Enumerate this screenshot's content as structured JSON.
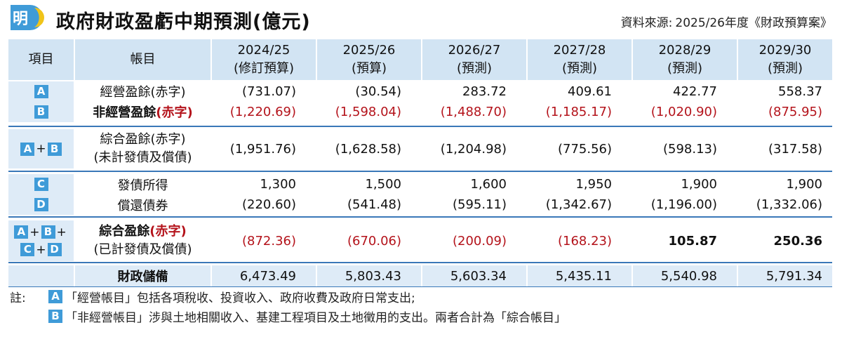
{
  "header": {
    "logo_char": "明",
    "title": "政府財政盈虧中期預測(億元)",
    "source_label": "資料來源:",
    "source_value": "2025/26年度《財政預算案》"
  },
  "columns": {
    "item": "項目",
    "account": "帳目",
    "years": [
      {
        "year": "2024/25",
        "type": "(修訂預算)"
      },
      {
        "year": "2025/26",
        "type": "(預算)"
      },
      {
        "year": "2026/27",
        "type": "(預測)"
      },
      {
        "year": "2027/28",
        "type": "(預測)"
      },
      {
        "year": "2028/29",
        "type": "(預測)"
      },
      {
        "year": "2029/30",
        "type": "(預測)"
      }
    ]
  },
  "badges": {
    "a": "A",
    "b": "B",
    "c": "C",
    "d": "D",
    "plus": "+"
  },
  "rows": {
    "operating": {
      "name_main": "經營盈餘",
      "name_paren": "(赤字)",
      "values": [
        "(731.07)",
        "(30.54)",
        "283.72",
        "409.61",
        "422.77",
        "558.37"
      ]
    },
    "non_operating": {
      "name_main": "非經營盈餘",
      "name_paren": "(赤字)",
      "values": [
        "(1,220.69)",
        "(1,598.04)",
        "(1,488.70)",
        "(1,185.17)",
        "(1,020.90)",
        "(875.95)"
      ]
    },
    "consolidated_pre": {
      "name_line1": "綜合盈餘(赤字)",
      "name_line2": "(未計發債及償債)",
      "values": [
        "(1,951.76)",
        "(1,628.58)",
        "(1,204.98)",
        "(775.56)",
        "(598.13)",
        "(317.58)"
      ]
    },
    "bond_proceeds": {
      "name": "發債所得",
      "values": [
        "1,300",
        "1,500",
        "1,600",
        "1,950",
        "1,900",
        "1,900"
      ]
    },
    "bond_repayment": {
      "name": "償還債券",
      "values": [
        "(220.60)",
        "(541.48)",
        "(595.11)",
        "(1,342.67)",
        "(1,196.00)",
        "(1,332.06)"
      ]
    },
    "consolidated_post": {
      "name_main": "綜合盈餘",
      "name_paren": "(赤字)",
      "name_line2": "(已計發債及償債)",
      "values": [
        "(872.36)",
        "(670.06)",
        "(200.09)",
        "(168.23)",
        "105.87",
        "250.36"
      ]
    },
    "reserves": {
      "name": "財政儲備",
      "values": [
        "6,473.49",
        "5,803.43",
        "5,603.34",
        "5,435.11",
        "5,540.98",
        "5,791.34"
      ]
    }
  },
  "notes": {
    "prefix": "註:",
    "line1": "「經營帳目」包括各項稅收、投資收入、政府收費及政府日常支出;",
    "line2": "「非經營帳目」涉與土地相關收入、基建工程項目及土地徵用的支出。兩者合計為「綜合帳目」"
  },
  "colors": {
    "header_bg": "#d2e4f3",
    "band_bg": "#deebf7",
    "badge": "#3f9bd8",
    "divider": "#3a78b8",
    "deficit_red": "#b4131b"
  }
}
